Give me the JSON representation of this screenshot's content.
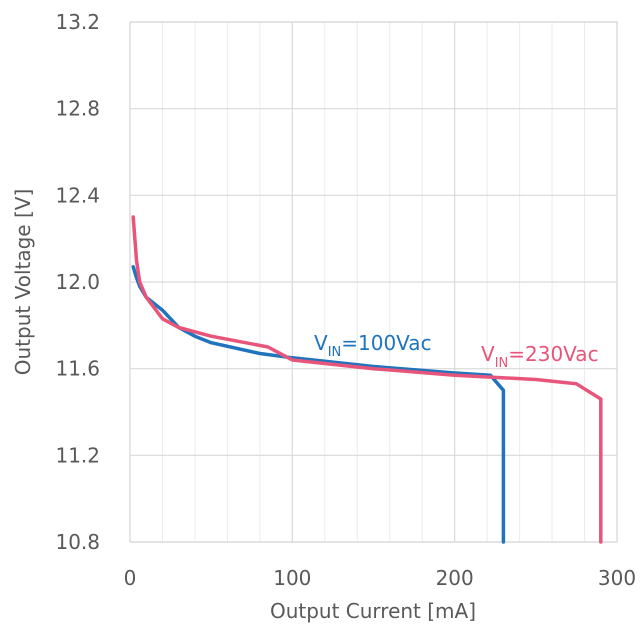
{
  "chart_data": {
    "type": "line",
    "title": "",
    "xlabel": "Output Current [mA]",
    "ylabel": "Output Voltage [V]",
    "xlim": [
      0,
      300
    ],
    "ylim": [
      10.8,
      13.2
    ],
    "x_ticks": [
      0,
      100,
      200,
      300
    ],
    "y_ticks": [
      10.8,
      11.2,
      11.6,
      12.0,
      12.4,
      12.8,
      13.2
    ],
    "y_tick_labels": [
      "10.8",
      "11.2",
      "11.6",
      "12.0",
      "12.4",
      "12.8",
      "13.2"
    ],
    "grid": true,
    "legend": "inline-labels",
    "series": [
      {
        "name": "V_IN=100Vac",
        "label_main": "V",
        "label_sub": "IN",
        "label_rest": "=100Vac",
        "color": "#1f74bd",
        "x": [
          2,
          4,
          6,
          10,
          20,
          30,
          40,
          50,
          80,
          100,
          150,
          200,
          222,
          230,
          230
        ],
        "y": [
          12.07,
          12.02,
          11.98,
          11.93,
          11.87,
          11.79,
          11.75,
          11.72,
          11.67,
          11.65,
          11.61,
          11.58,
          11.57,
          11.5,
          10.8
        ]
      },
      {
        "name": "V_IN=230Vac",
        "label_main": "V",
        "label_sub": "IN",
        "label_rest": "=230Vac",
        "color": "#e8557a",
        "x": [
          2,
          4,
          6,
          10,
          20,
          30,
          50,
          85,
          95,
          100,
          150,
          200,
          250,
          275,
          290,
          290
        ],
        "y": [
          12.3,
          12.1,
          12.0,
          11.93,
          11.83,
          11.79,
          11.75,
          11.7,
          11.66,
          11.64,
          11.6,
          11.57,
          11.55,
          11.53,
          11.46,
          10.8
        ]
      }
    ]
  }
}
